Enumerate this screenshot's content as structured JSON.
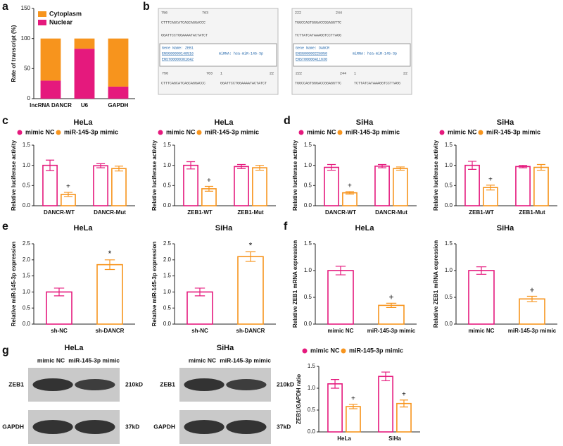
{
  "chart_data": [
    {
      "type": "stacked_bar",
      "panel": "a",
      "ylabel": "Rate of transcript (%)",
      "categories": [
        "lncRNA DANCR",
        "U6",
        "GAPDH"
      ],
      "series": [
        {
          "name": "Cytoplasm",
          "color": "#f7941d",
          "values": [
            70,
            17,
            80
          ]
        },
        {
          "name": "Nuclear",
          "color": "#e5197d",
          "values": [
            30,
            83,
            20
          ]
        }
      ],
      "ylim": [
        0,
        150
      ],
      "yticks": [
        0,
        50,
        100,
        150
      ]
    },
    {
      "type": "grouped_bar",
      "panel": "c",
      "title": "HeLa",
      "ylabel": "Relative luciferase activity",
      "categories": [
        "DANCR-WT",
        "DANCR-Mut"
      ],
      "series": [
        {
          "name": "mimic NC",
          "color": "#e5197d",
          "values": [
            1.0,
            0.99
          ],
          "errors": [
            0.13,
            0.05
          ]
        },
        {
          "name": "miR-145-3p mimic",
          "color": "#f7941d",
          "values": [
            0.28,
            0.92
          ],
          "errors": [
            0.05,
            0.06
          ],
          "significance": [
            "+",
            null
          ]
        }
      ],
      "ylim": [
        0,
        1.5
      ],
      "yticks": [
        {
          "value": 0,
          "label": "0.0"
        },
        {
          "value": 0.5,
          "label": "0.5"
        },
        {
          "value": 1,
          "label": "1.0"
        },
        {
          "value": 1.5,
          "label": "1.5"
        }
      ]
    },
    {
      "type": "grouped_bar",
      "title": "HeLa",
      "ylabel": "Relative luciferase activity",
      "categories": [
        "ZEB1-WT",
        "ZEB1-Mut"
      ],
      "series": [
        {
          "name": "mimic NC",
          "color": "#e5197d",
          "values": [
            1.0,
            0.97
          ],
          "errors": [
            0.09,
            0.05
          ]
        },
        {
          "name": "miR-145-3p mimic",
          "color": "#f7941d",
          "values": [
            0.42,
            0.94
          ],
          "errors": [
            0.06,
            0.06
          ],
          "significance": [
            "+",
            null
          ]
        }
      ],
      "ylim": [
        0,
        1.5
      ],
      "yticks": [
        {
          "value": 0,
          "label": "0.0"
        },
        {
          "value": 0.5,
          "label": "0.5"
        },
        {
          "value": 1,
          "label": "1.0"
        },
        {
          "value": 1.5,
          "label": "1.5"
        }
      ]
    },
    {
      "type": "grouped_bar",
      "panel": "d",
      "title": "SiHa",
      "ylabel": "Relative luciferase activity",
      "categories": [
        "DANCR-WT",
        "DANCR-Mut"
      ],
      "series": [
        {
          "name": "mimic NC",
          "color": "#e5197d",
          "values": [
            0.95,
            0.98
          ],
          "errors": [
            0.07,
            0.04
          ]
        },
        {
          "name": "miR-145-3p mimic",
          "color": "#f7941d",
          "values": [
            0.32,
            0.92
          ],
          "errors": [
            0.03,
            0.04
          ],
          "significance": [
            "+",
            null
          ]
        }
      ],
      "ylim": [
        0,
        1.5
      ],
      "yticks": [
        {
          "value": 0,
          "label": "0.0"
        },
        {
          "value": 0.5,
          "label": "0.5"
        },
        {
          "value": 1,
          "label": "1.0"
        },
        {
          "value": 1.5,
          "label": "1.5"
        }
      ]
    },
    {
      "type": "grouped_bar",
      "title": "SiHa",
      "ylabel": "Relative luciferase activity",
      "categories": [
        "ZEB1-WT",
        "ZEB1-Mut"
      ],
      "series": [
        {
          "name": "mimic NC",
          "color": "#e5197d",
          "values": [
            1.0,
            0.97
          ],
          "errors": [
            0.1,
            0.03
          ]
        },
        {
          "name": "miR-145-3p mimic",
          "color": "#f7941d",
          "values": [
            0.45,
            0.95
          ],
          "errors": [
            0.06,
            0.07
          ],
          "significance": [
            "+",
            null
          ]
        }
      ],
      "ylim": [
        0,
        1.5
      ],
      "yticks": [
        {
          "value": 0,
          "label": "0.0"
        },
        {
          "value": 0.5,
          "label": "0.5"
        },
        {
          "value": 1,
          "label": "1.0"
        },
        {
          "value": 1.5,
          "label": "1.5"
        }
      ]
    },
    {
      "type": "bar",
      "panel": "e",
      "title": "HeLa",
      "ylabel": "Relative miR-145-3p expression",
      "categories": [
        "sh-NC",
        "sh-DANCR"
      ],
      "colors": [
        "#e5197d",
        "#f7941d"
      ],
      "values": [
        1.0,
        1.85
      ],
      "errors": [
        0.12,
        0.15
      ],
      "significance": [
        null,
        "*"
      ],
      "ylim": [
        0,
        2.5
      ],
      "yticks": [
        {
          "value": 0,
          "label": "0.0"
        },
        {
          "value": 0.5,
          "label": "0.5"
        },
        {
          "value": 1,
          "label": "1.0"
        },
        {
          "value": 1.5,
          "label": "1.5"
        },
        {
          "value": 2,
          "label": "2.0"
        },
        {
          "value": 2.5,
          "label": "2.5"
        }
      ]
    },
    {
      "type": "bar",
      "title": "SiHa",
      "ylabel": "Relative miR-145-3p expression",
      "categories": [
        "sh-NC",
        "sh-DANCR"
      ],
      "colors": [
        "#e5197d",
        "#f7941d"
      ],
      "values": [
        1.0,
        2.1
      ],
      "errors": [
        0.12,
        0.15
      ],
      "significance": [
        null,
        "*"
      ],
      "ylim": [
        0,
        2.5
      ],
      "yticks": [
        {
          "value": 0,
          "label": "0.0"
        },
        {
          "value": 0.5,
          "label": "0.5"
        },
        {
          "value": 1,
          "label": "1.0"
        },
        {
          "value": 1.5,
          "label": "1.5"
        },
        {
          "value": 2,
          "label": "2.0"
        },
        {
          "value": 2.5,
          "label": "2.5"
        }
      ]
    },
    {
      "type": "bar",
      "panel": "f",
      "title": "HeLa",
      "ylabel": "Relative ZEB1 mRNA expression",
      "categories": [
        "mimic NC",
        "miR-145-3p mimic"
      ],
      "colors": [
        "#e5197d",
        "#f7941d"
      ],
      "values": [
        1.0,
        0.35
      ],
      "errors": [
        0.08,
        0.04
      ],
      "significance": [
        null,
        "+"
      ],
      "ylim": [
        0,
        1.5
      ],
      "yticks": [
        {
          "value": 0,
          "label": "0.0"
        },
        {
          "value": 0.5,
          "label": "0.5"
        },
        {
          "value": 1,
          "label": "1.0"
        },
        {
          "value": 1.5,
          "label": "1.5"
        }
      ]
    },
    {
      "type": "bar",
      "title": "SiHa",
      "ylabel": "Relative ZEB1 mRNA expression",
      "categories": [
        "mimic NC",
        "miR-145-3p mimic"
      ],
      "colors": [
        "#e5197d",
        "#f7941d"
      ],
      "values": [
        1.0,
        0.47
      ],
      "errors": [
        0.07,
        0.05
      ],
      "significance": [
        null,
        "+"
      ],
      "ylim": [
        0,
        1.5
      ],
      "yticks": [
        {
          "value": 0,
          "label": "0.0"
        },
        {
          "value": 0.5,
          "label": "0.5"
        },
        {
          "value": 1,
          "label": "1.0"
        },
        {
          "value": 1.5,
          "label": "1.5"
        }
      ]
    },
    {
      "type": "grouped_bar",
      "ylabel": "ZEB1/GAPDH ratio",
      "categories": [
        "HeLa",
        "SiHa"
      ],
      "series": [
        {
          "name": "mimic NC",
          "color": "#e5197d",
          "values": [
            1.1,
            1.27
          ],
          "errors": [
            0.1,
            0.1
          ]
        },
        {
          "name": "miR-145-3p mimic",
          "color": "#f7941d",
          "values": [
            0.58,
            0.65
          ],
          "errors": [
            0.05,
            0.08
          ],
          "significance": [
            "+",
            "+"
          ]
        }
      ],
      "ylim": [
        0,
        1.5
      ],
      "yticks": [
        {
          "value": 0,
          "label": "0.0"
        },
        {
          "value": 0.5,
          "label": "0.5"
        },
        {
          "value": 1,
          "label": "1.0"
        },
        {
          "value": 1.5,
          "label": "1.5"
        }
      ]
    }
  ],
  "alignment": {
    "panel": "b",
    "boxes": [
      {
        "top": [
          "756",
          "763"
        ],
        "seq": [
          "CTTTCAGCATCAGCAGGACCC",
          "GGATTCCTGGAAAATACTATCT"
        ],
        "gene": "Gene Name: ZEB1",
        "ids": [
          "ENSG00000148516",
          "ENST00000361642"
        ],
        "mirna": "miRNA: hsa-miR-145-3p",
        "bottom": [
          "756",
          "763",
          "1",
          "22"
        ]
      },
      {
        "top": [
          "222",
          "244"
        ],
        "seq": [
          "TGGCCAGTGGGACCGGAGGTTC",
          "TCTTATCATAAAGGTCCTTAGG"
        ],
        "gene": "Gene Name: DANCR",
        "ids": [
          "ENSG00000226950",
          "ENST00000411630"
        ],
        "mirna": "miRNA: hsa-miR-145-3p",
        "bottom": [
          "222",
          "244",
          "1",
          "22"
        ]
      }
    ]
  },
  "western_blot": {
    "panel": "g",
    "blots": [
      {
        "title": "HeLa",
        "lanes": [
          "mimic NC",
          "miR-145-3p mimic"
        ],
        "rows": [
          {
            "name": "ZEB1",
            "size": "210kD"
          },
          {
            "name": "GAPDH",
            "size": "37kD"
          }
        ]
      },
      {
        "title": "SiHa",
        "lanes": [
          "mimic NC",
          "miR-145-3p mimic"
        ],
        "rows": [
          {
            "name": "ZEB1",
            "size": "210kD"
          },
          {
            "name": "GAPDH",
            "size": "37kD"
          }
        ]
      }
    ]
  }
}
